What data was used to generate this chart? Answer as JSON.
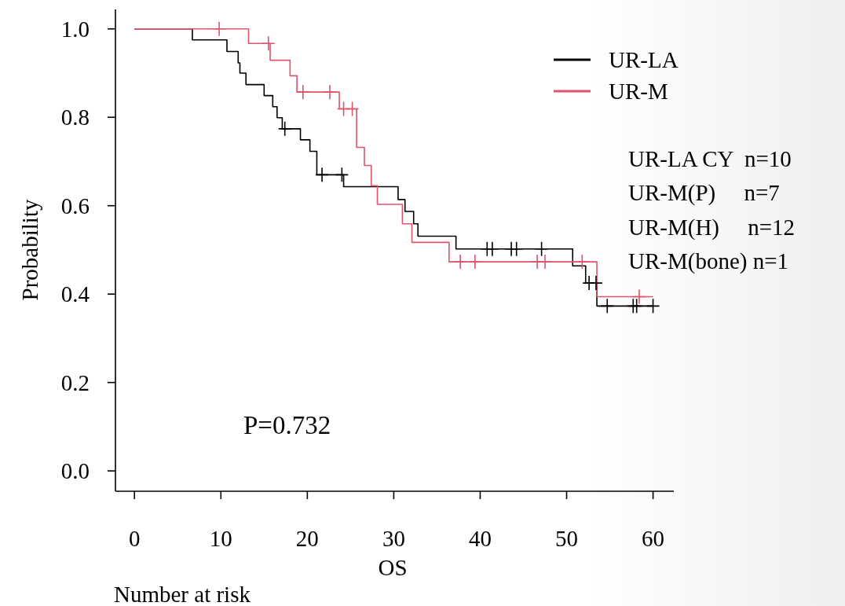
{
  "chart_data": {
    "type": "step",
    "xlabel": "OS",
    "ylabel": "Probability",
    "xlim": [
      -2.2,
      62.4
    ],
    "ylim": [
      -0.046,
      1.044
    ],
    "xticks": [
      0,
      10,
      20,
      30,
      40,
      50,
      60
    ],
    "yticks": [
      {
        "value": 0,
        "label": "0.0"
      },
      {
        "value": 0.2,
        "label": "0.2"
      },
      {
        "value": 0.4,
        "label": "0.4"
      },
      {
        "value": 0.6,
        "label": "0.6"
      },
      {
        "value": 0.8,
        "label": "0.8"
      },
      {
        "value": 1,
        "label": "1.0"
      }
    ],
    "grid": false,
    "legend": "top right",
    "line_style": "solid",
    "series": [
      {
        "name": "UR-LA",
        "color": "#000000",
        "x": [
          0,
          6.7,
          10.7,
          12.0,
          12.2,
          12.9,
          15.0,
          16.0,
          16.5,
          17.1,
          19.2,
          20.3,
          21.1,
          24.2,
          30.5,
          31.3,
          32.3,
          32.8,
          37.2,
          50.7,
          52.2,
          53.5,
          60
        ],
        "values": [
          1.0,
          0.975,
          0.949,
          0.923,
          0.9,
          0.874,
          0.849,
          0.824,
          0.799,
          0.774,
          0.749,
          0.723,
          0.67,
          0.643,
          0.614,
          0.587,
          0.559,
          0.531,
          0.502,
          0.464,
          0.425,
          0.373,
          0.373
        ]
      },
      {
        "name": "UR-M",
        "color": "#df536b",
        "x": [
          0,
          13.2,
          15.7,
          18.0,
          18.8,
          23.7,
          25.7,
          26.6,
          27.4,
          28.1,
          31.0,
          32.1,
          36.4,
          53.5,
          60
        ],
        "values": [
          1.0,
          0.967,
          0.929,
          0.894,
          0.857,
          0.819,
          0.732,
          0.691,
          0.645,
          0.603,
          0.559,
          0.517,
          0.473,
          0.394,
          0.394
        ]
      },
      {
        "type": "scatter",
        "marker": "cross",
        "color": "#000000",
        "x": [
          17.4,
          21.7,
          24.0,
          40.8,
          41.4,
          43.6,
          44.2,
          47.1,
          52.6,
          53.4,
          54.7,
          57.7,
          58.1,
          60
        ],
        "values": [
          0.774,
          0.67,
          0.67,
          0.502,
          0.502,
          0.502,
          0.502,
          0.502,
          0.425,
          0.425,
          0.373,
          0.373,
          0.373,
          0.373
        ]
      },
      {
        "type": "scatter",
        "marker": "cross",
        "color": "#df536b",
        "x": [
          9.8,
          15.5,
          19.5,
          22.6,
          24.2,
          25.2,
          37.7,
          39.4,
          46.6,
          47.5,
          51.8,
          58.4
        ],
        "values": [
          1.0,
          0.967,
          0.857,
          0.857,
          0.819,
          0.819,
          0.473,
          0.473,
          0.473,
          0.473,
          0.473,
          0.394
        ]
      }
    ],
    "annotations": [
      "UR-LA CY  n=10",
      "UR-M(P)     n=7",
      "UR-M(H)     n=12",
      "UR-M(bone) n=1",
      {
        "text": "P=0.732"
      },
      "Number at risk"
    ]
  }
}
